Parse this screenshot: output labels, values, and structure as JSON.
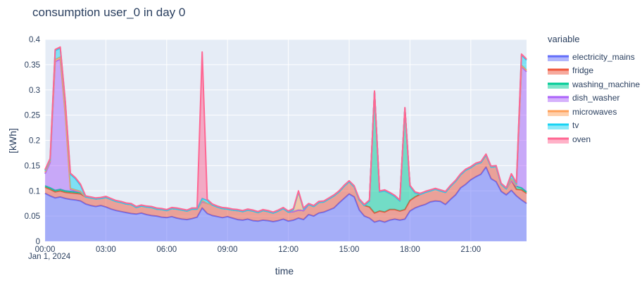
{
  "title": "consumption user_0 in day 0",
  "chart_data": {
    "type": "area",
    "stacked": true,
    "title": "consumption user_0 in day 0",
    "xlabel": "time",
    "ylabel": "[kWh]",
    "x_date_label": "Jan 1, 2024",
    "legend_title": "variable",
    "plot_bg": "#E5ECF6",
    "grid_color": "#FFFFFF",
    "text_color": "#2a3f5f",
    "ylim": [
      0,
      0.4
    ],
    "x_range_hours": [
      0,
      23.75
    ],
    "x_start_hour": 0,
    "x_step_hours": 0.25,
    "x_tick_hours": [
      0,
      3,
      6,
      9,
      12,
      15,
      18,
      21
    ],
    "x_tick_labels": [
      "00:00",
      "03:00",
      "06:00",
      "09:00",
      "12:00",
      "15:00",
      "18:00",
      "21:00"
    ],
    "y_ticks": [
      0,
      0.05,
      0.1,
      0.15,
      0.2,
      0.25,
      0.3,
      0.35,
      0.4
    ],
    "y_tick_labels": [
      "0",
      "0.05",
      "0.1",
      "0.15",
      "0.2",
      "0.25",
      "0.3",
      "0.35",
      "0.4"
    ],
    "legend_position": "right",
    "grid": true,
    "series": [
      {
        "name": "electricity_mains",
        "color": "#636EFA",
        "values": [
          0.095,
          0.09,
          0.086,
          0.088,
          0.085,
          0.083,
          0.082,
          0.08,
          0.074,
          0.071,
          0.069,
          0.071,
          0.068,
          0.064,
          0.061,
          0.059,
          0.057,
          0.055,
          0.054,
          0.056,
          0.053,
          0.051,
          0.05,
          0.048,
          0.047,
          0.049,
          0.046,
          0.044,
          0.043,
          0.045,
          0.048,
          0.066,
          0.055,
          0.051,
          0.049,
          0.047,
          0.049,
          0.046,
          0.043,
          0.042,
          0.044,
          0.041,
          0.04,
          0.042,
          0.041,
          0.039,
          0.041,
          0.044,
          0.04,
          0.042,
          0.046,
          0.043,
          0.053,
          0.05,
          0.056,
          0.058,
          0.062,
          0.066,
          0.076,
          0.085,
          0.094,
          0.088,
          0.062,
          0.05,
          0.046,
          0.038,
          0.041,
          0.038,
          0.042,
          0.044,
          0.042,
          0.044,
          0.06,
          0.066,
          0.07,
          0.073,
          0.078,
          0.08,
          0.079,
          0.073,
          0.083,
          0.092,
          0.106,
          0.113,
          0.122,
          0.128,
          0.133,
          0.147,
          0.124,
          0.118,
          0.099,
          0.092,
          0.101,
          0.09,
          0.082,
          0.075
        ]
      },
      {
        "name": "fridge",
        "color": "#EF553B",
        "values": [
          0.012,
          0.013,
          0.012,
          0.012,
          0.012,
          0.013,
          0.013,
          0.014,
          0.014,
          0.015,
          0.015,
          0.014,
          0.019,
          0.019,
          0.018,
          0.018,
          0.017,
          0.018,
          0.013,
          0.014,
          0.015,
          0.016,
          0.014,
          0.015,
          0.014,
          0.016,
          0.018,
          0.018,
          0.017,
          0.019,
          0.016,
          0.013,
          0.02,
          0.021,
          0.019,
          0.018,
          0.015,
          0.016,
          0.018,
          0.017,
          0.018,
          0.019,
          0.017,
          0.019,
          0.018,
          0.017,
          0.019,
          0.021,
          0.018,
          0.017,
          0.016,
          0.018,
          0.02,
          0.019,
          0.021,
          0.02,
          0.022,
          0.024,
          0.022,
          0.024,
          0.024,
          0.02,
          0.02,
          0.021,
          0.022,
          0.018,
          0.019,
          0.02,
          0.021,
          0.019,
          0.018,
          0.019,
          0.021,
          0.022,
          0.023,
          0.024,
          0.022,
          0.023,
          0.021,
          0.024,
          0.026,
          0.027,
          0.026,
          0.028,
          0.024,
          0.025,
          0.023,
          0.024,
          0.023,
          0.03,
          0.014,
          0.012,
          0.02,
          0.013,
          0.02,
          0.02
        ]
      },
      {
        "name": "washing_machine",
        "color": "#00CC96",
        "values": [
          0.003,
          0.003,
          0.003,
          0.003,
          0.003,
          0.003,
          0.003,
          0.003,
          0,
          0,
          0,
          0,
          0,
          0,
          0,
          0,
          0,
          0,
          0,
          0,
          0,
          0,
          0,
          0,
          0,
          0,
          0,
          0,
          0,
          0,
          0,
          0,
          0,
          0,
          0,
          0,
          0,
          0,
          0,
          0,
          0,
          0,
          0,
          0,
          0,
          0,
          0,
          0,
          0,
          0,
          0,
          0,
          0,
          0,
          0,
          0,
          0,
          0,
          0,
          0,
          0,
          0,
          0,
          0,
          0.012,
          0.24,
          0.038,
          0.042,
          0.032,
          0.026,
          0.02,
          0.2,
          0.028,
          0.008,
          0,
          0,
          0,
          0,
          0,
          0,
          0,
          0,
          0,
          0,
          0,
          0,
          0,
          0,
          0,
          0,
          0,
          0,
          0,
          0.006,
          0.004,
          0.003
        ]
      },
      {
        "name": "dish_washer",
        "color": "#AB63FA",
        "values": [
          0.024,
          0.05,
          0.255,
          0.258,
          0.15,
          0.004,
          0.002,
          0.001,
          0,
          0,
          0,
          0,
          0,
          0,
          0,
          0,
          0,
          0,
          0,
          0,
          0,
          0,
          0,
          0,
          0,
          0,
          0,
          0,
          0,
          0,
          0,
          0,
          0,
          0,
          0,
          0,
          0,
          0,
          0,
          0,
          0,
          0,
          0,
          0,
          0,
          0,
          0,
          0,
          0,
          0,
          0,
          0,
          0,
          0,
          0,
          0,
          0,
          0,
          0,
          0,
          0,
          0,
          0,
          0,
          0,
          0,
          0,
          0,
          0,
          0,
          0,
          0,
          0,
          0,
          0,
          0,
          0,
          0,
          0,
          0,
          0,
          0,
          0,
          0,
          0,
          0,
          0,
          0,
          0,
          0,
          0,
          0,
          0,
          0,
          0.24,
          0.238
        ]
      },
      {
        "name": "microwaves",
        "color": "#FFA15A",
        "values": [
          0.003,
          0.003,
          0.004,
          0.004,
          0.003,
          0.002,
          0.002,
          0.001,
          0,
          0,
          0,
          0,
          0,
          0,
          0,
          0,
          0,
          0,
          0,
          0,
          0,
          0,
          0,
          0,
          0,
          0,
          0,
          0,
          0,
          0,
          0,
          0.002,
          0,
          0,
          0,
          0,
          0,
          0,
          0,
          0,
          0,
          0,
          0,
          0,
          0,
          0,
          0,
          0,
          0,
          0.004,
          0.036,
          0.003,
          0,
          0,
          0,
          0,
          0,
          0,
          0,
          0,
          0,
          0,
          0,
          0,
          0,
          0,
          0,
          0,
          0,
          0,
          0,
          0,
          0,
          0,
          0,
          0,
          0,
          0,
          0,
          0,
          0,
          0,
          0,
          0,
          0,
          0,
          0,
          0,
          0,
          0,
          0,
          0,
          0.003,
          0.002,
          0.003,
          0.003
        ]
      },
      {
        "name": "tv",
        "color": "#19D3F3",
        "values": [
          0.003,
          0.003,
          0.018,
          0.018,
          0.022,
          0.028,
          0.022,
          0.012,
          0,
          0,
          0,
          0,
          0,
          0,
          0,
          0,
          0,
          0,
          0,
          0,
          0,
          0,
          0,
          0,
          0,
          0,
          0,
          0,
          0,
          0,
          0,
          0.004,
          0.006,
          0,
          0,
          0,
          0,
          0,
          0,
          0,
          0,
          0,
          0,
          0,
          0,
          0,
          0,
          0,
          0,
          0,
          0,
          0,
          0,
          0,
          0,
          0,
          0,
          0,
          0,
          0,
          0,
          0,
          0,
          0,
          0,
          0,
          0,
          0,
          0,
          0,
          0,
          0,
          0,
          0,
          0,
          0,
          0,
          0,
          0,
          0,
          0,
          0,
          0,
          0,
          0,
          0,
          0,
          0,
          0,
          0,
          0,
          0,
          0.008,
          0.003,
          0.02,
          0.02
        ]
      },
      {
        "name": "oven",
        "color": "#FF6692",
        "values": [
          0.002,
          0.002,
          0.002,
          0.002,
          0.002,
          0.002,
          0.002,
          0.002,
          0.002,
          0.002,
          0.002,
          0.002,
          0.002,
          0.002,
          0.002,
          0.002,
          0.002,
          0.002,
          0.002,
          0.002,
          0.002,
          0.002,
          0.002,
          0.002,
          0.002,
          0.002,
          0.002,
          0.002,
          0.002,
          0.002,
          0.002,
          0.29,
          0.002,
          0.002,
          0.002,
          0.002,
          0.002,
          0.002,
          0.002,
          0.002,
          0.002,
          0.002,
          0.002,
          0.002,
          0.002,
          0.002,
          0.002,
          0.002,
          0.002,
          0.002,
          0.002,
          0.002,
          0.002,
          0.002,
          0.002,
          0.002,
          0.002,
          0.002,
          0.002,
          0.002,
          0.002,
          0.002,
          0.002,
          0.002,
          0.002,
          0.002,
          0.002,
          0.002,
          0.002,
          0.002,
          0.002,
          0.002,
          0.002,
          0.002,
          0.002,
          0.002,
          0.002,
          0.002,
          0.002,
          0.002,
          0.002,
          0.002,
          0.002,
          0.002,
          0.002,
          0.002,
          0.002,
          0.002,
          0.002,
          0.002,
          0.002,
          0.002,
          0.002,
          0.002,
          0.002,
          0.002
        ]
      }
    ]
  }
}
